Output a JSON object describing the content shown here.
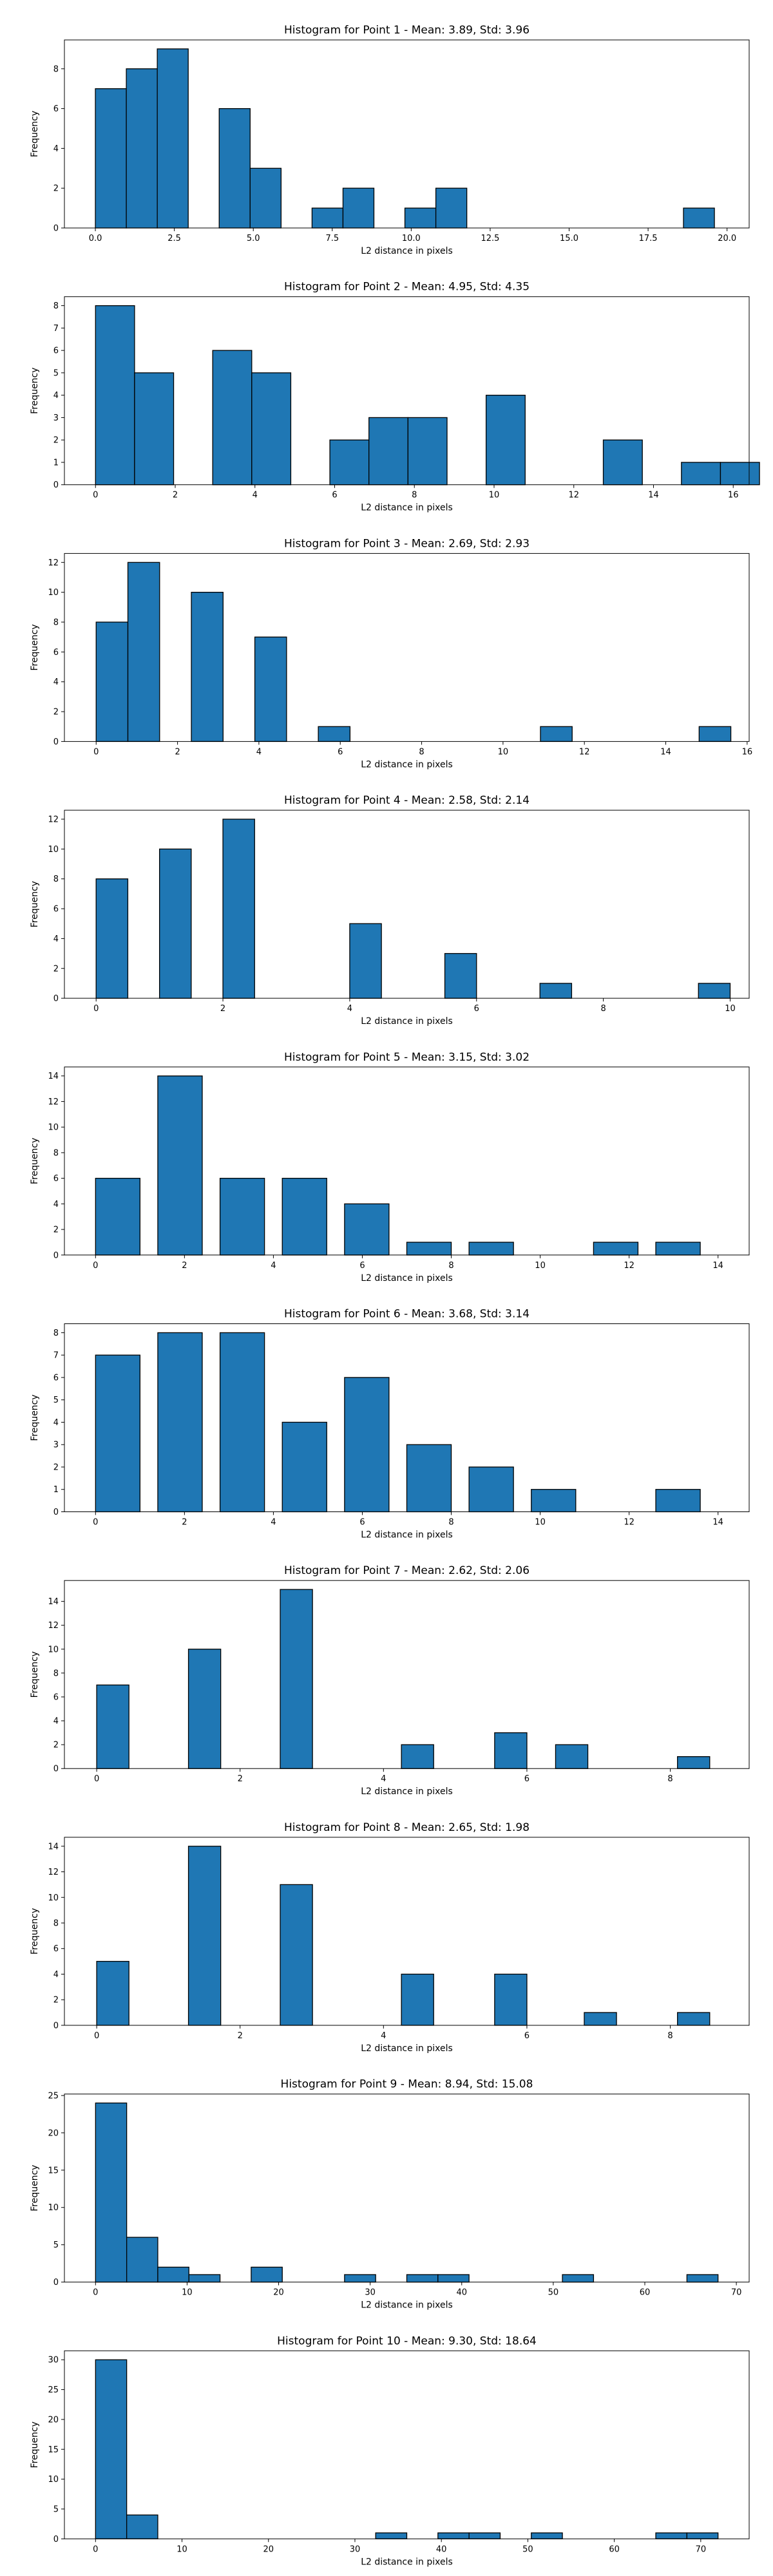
{
  "figure": {
    "bar_color": "#1f77b4",
    "edge_color": "#000000"
  },
  "chart_data": [
    {
      "type": "bar",
      "title": "Histogram for Point 1 - Mean: 3.89, Std: 3.96",
      "xlabel": "L2 distance in pixels",
      "ylabel": "Frequency",
      "xlim": [
        -0.98,
        20.7
      ],
      "ylim": [
        0,
        9.45
      ],
      "xticks": [
        0.0,
        2.5,
        5.0,
        7.5,
        10.0,
        12.5,
        15.0,
        17.5,
        20.0
      ],
      "xtick_labels": [
        "0.0",
        "2.5",
        "5.0",
        "7.5",
        "10.0",
        "12.5",
        "15.0",
        "17.5",
        "20.0"
      ],
      "yticks": [
        0,
        2,
        4,
        6,
        8
      ],
      "bins": [
        {
          "x0": 0.0,
          "x1": 0.98,
          "count": 7
        },
        {
          "x0": 0.98,
          "x1": 1.96,
          "count": 8
        },
        {
          "x0": 1.96,
          "x1": 2.94,
          "count": 9
        },
        {
          "x0": 3.92,
          "x1": 4.9,
          "count": 6
        },
        {
          "x0": 4.9,
          "x1": 5.88,
          "count": 3
        },
        {
          "x0": 6.86,
          "x1": 7.84,
          "count": 1
        },
        {
          "x0": 7.84,
          "x1": 8.82,
          "count": 2
        },
        {
          "x0": 9.8,
          "x1": 10.78,
          "count": 1
        },
        {
          "x0": 10.78,
          "x1": 11.76,
          "count": 2
        },
        {
          "x0": 18.62,
          "x1": 19.6,
          "count": 1
        }
      ]
    },
    {
      "type": "bar",
      "title": "Histogram for Point 2 - Mean: 4.95, Std: 4.35",
      "xlabel": "L2 distance in pixels",
      "ylabel": "Frequency",
      "xlim": [
        -0.78,
        16.4
      ],
      "ylim": [
        0,
        8.4
      ],
      "xticks": [
        0,
        2,
        4,
        6,
        8,
        10,
        12,
        14,
        16
      ],
      "xtick_labels": [
        "0",
        "2",
        "4",
        "6",
        "8",
        "10",
        "12",
        "14",
        "16"
      ],
      "yticks": [
        0,
        1,
        2,
        3,
        4,
        5,
        6,
        7,
        8
      ],
      "bins": [
        {
          "x0": 0.0,
          "x1": 0.98,
          "count": 8
        },
        {
          "x0": 0.98,
          "x1": 1.96,
          "count": 5
        },
        {
          "x0": 2.94,
          "x1": 3.92,
          "count": 6
        },
        {
          "x0": 3.92,
          "x1": 4.9,
          "count": 5
        },
        {
          "x0": 5.88,
          "x1": 6.86,
          "count": 2
        },
        {
          "x0": 6.86,
          "x1": 7.84,
          "count": 3
        },
        {
          "x0": 7.84,
          "x1": 8.82,
          "count": 3
        },
        {
          "x0": 9.8,
          "x1": 10.78,
          "count": 4
        },
        {
          "x0": 12.74,
          "x1": 13.72,
          "count": 2
        },
        {
          "x0": 14.7,
          "x1": 15.68,
          "count": 1
        },
        {
          "x0": 15.68,
          "x1": 16.66,
          "count": 1
        }
      ]
    },
    {
      "type": "bar",
      "title": "Histogram for Point 3 - Mean: 2.69, Std: 2.93",
      "xlabel": "L2 distance in pixels",
      "ylabel": "Frequency",
      "xlim": [
        -0.78,
        16.05
      ],
      "ylim": [
        0,
        12.6
      ],
      "xticks": [
        0,
        2,
        4,
        6,
        8,
        10,
        12,
        14,
        16
      ],
      "xtick_labels": [
        "0",
        "2",
        "4",
        "6",
        "8",
        "10",
        "12",
        "14",
        "16"
      ],
      "yticks": [
        0,
        2,
        4,
        6,
        8,
        10,
        12
      ],
      "bins": [
        {
          "x0": 0.0,
          "x1": 0.78,
          "count": 8
        },
        {
          "x0": 0.78,
          "x1": 1.56,
          "count": 12
        },
        {
          "x0": 2.34,
          "x1": 3.12,
          "count": 10
        },
        {
          "x0": 3.9,
          "x1": 4.68,
          "count": 7
        },
        {
          "x0": 5.46,
          "x1": 6.24,
          "count": 1
        },
        {
          "x0": 10.92,
          "x1": 11.7,
          "count": 1
        },
        {
          "x0": 14.82,
          "x1": 15.6,
          "count": 1
        }
      ]
    },
    {
      "type": "bar",
      "title": "Histogram for Point 4 - Mean: 2.58, Std: 2.14",
      "xlabel": "L2 distance in pixels",
      "ylabel": "Frequency",
      "xlim": [
        -0.5,
        10.3
      ],
      "ylim": [
        0,
        12.6
      ],
      "xticks": [
        0,
        2,
        4,
        6,
        8,
        10
      ],
      "xtick_labels": [
        "0",
        "2",
        "4",
        "6",
        "8",
        "10"
      ],
      "yticks": [
        0,
        2,
        4,
        6,
        8,
        10,
        12
      ],
      "bins": [
        {
          "x0": 0.0,
          "x1": 0.5,
          "count": 8
        },
        {
          "x0": 1.0,
          "x1": 1.5,
          "count": 10
        },
        {
          "x0": 2.0,
          "x1": 2.5,
          "count": 12
        },
        {
          "x0": 4.0,
          "x1": 4.5,
          "count": 5
        },
        {
          "x0": 5.5,
          "x1": 6.0,
          "count": 3
        },
        {
          "x0": 7.0,
          "x1": 7.5,
          "count": 1
        },
        {
          "x0": 9.5,
          "x1": 10.0,
          "count": 1
        }
      ]
    },
    {
      "type": "bar",
      "title": "Histogram for Point 5 - Mean: 3.15, Std: 3.02",
      "xlabel": "L2 distance in pixels",
      "ylabel": "Frequency",
      "xlim": [
        -0.7,
        14.7
      ],
      "ylim": [
        0,
        14.7
      ],
      "xticks": [
        0,
        2,
        4,
        6,
        8,
        10,
        12,
        14
      ],
      "xtick_labels": [
        "0",
        "2",
        "4",
        "6",
        "8",
        "10",
        "12",
        "14"
      ],
      "yticks": [
        0,
        2,
        4,
        6,
        8,
        10,
        12,
        14
      ],
      "bins": [
        {
          "x0": 0.0,
          "x1": 1.0,
          "count": 6
        },
        {
          "x0": 1.4,
          "x1": 2.4,
          "count": 14
        },
        {
          "x0": 2.8,
          "x1": 3.8,
          "count": 6
        },
        {
          "x0": 4.2,
          "x1": 5.2,
          "count": 6
        },
        {
          "x0": 5.6,
          "x1": 6.6,
          "count": 4
        },
        {
          "x0": 7.0,
          "x1": 8.0,
          "count": 1
        },
        {
          "x0": 8.4,
          "x1": 9.4,
          "count": 1
        },
        {
          "x0": 11.2,
          "x1": 12.2,
          "count": 1
        },
        {
          "x0": 12.6,
          "x1": 13.6,
          "count": 1
        }
      ]
    },
    {
      "type": "bar",
      "title": "Histogram for Point 6 - Mean: 3.68, Std: 3.14",
      "xlabel": "L2 distance in pixels",
      "ylabel": "Frequency",
      "xlim": [
        -0.7,
        14.7
      ],
      "ylim": [
        0,
        8.4
      ],
      "xticks": [
        0,
        2,
        4,
        6,
        8,
        10,
        12,
        14
      ],
      "xtick_labels": [
        "0",
        "2",
        "4",
        "6",
        "8",
        "10",
        "12",
        "14"
      ],
      "yticks": [
        0,
        1,
        2,
        3,
        4,
        5,
        6,
        7,
        8
      ],
      "bins": [
        {
          "x0": 0.0,
          "x1": 1.0,
          "count": 7
        },
        {
          "x0": 1.4,
          "x1": 2.4,
          "count": 8
        },
        {
          "x0": 2.8,
          "x1": 3.8,
          "count": 8
        },
        {
          "x0": 4.2,
          "x1": 5.2,
          "count": 4
        },
        {
          "x0": 5.6,
          "x1": 6.6,
          "count": 6
        },
        {
          "x0": 7.0,
          "x1": 8.0,
          "count": 3
        },
        {
          "x0": 8.4,
          "x1": 9.4,
          "count": 2
        },
        {
          "x0": 9.8,
          "x1": 10.8,
          "count": 1
        },
        {
          "x0": 12.6,
          "x1": 13.6,
          "count": 1
        }
      ]
    },
    {
      "type": "bar",
      "title": "Histogram for Point 7 - Mean: 2.62, Std: 2.06",
      "xlabel": "L2 distance in pixels",
      "ylabel": "Frequency",
      "xlim": [
        -0.45,
        9.1
      ],
      "ylim": [
        0,
        15.75
      ],
      "xticks": [
        0,
        2,
        4,
        6,
        8
      ],
      "xtick_labels": [
        "0",
        "2",
        "4",
        "6",
        "8"
      ],
      "yticks": [
        0,
        2,
        4,
        6,
        8,
        10,
        12,
        14
      ],
      "bins": [
        {
          "x0": 0.0,
          "x1": 0.45,
          "count": 7
        },
        {
          "x0": 1.28,
          "x1": 1.73,
          "count": 10
        },
        {
          "x0": 2.56,
          "x1": 3.01,
          "count": 15
        },
        {
          "x0": 4.25,
          "x1": 4.7,
          "count": 2
        },
        {
          "x0": 5.55,
          "x1": 6.0,
          "count": 3
        },
        {
          "x0": 6.4,
          "x1": 6.85,
          "count": 2
        },
        {
          "x0": 8.1,
          "x1": 8.55,
          "count": 1
        }
      ]
    },
    {
      "type": "bar",
      "title": "Histogram for Point 8 - Mean: 2.65, Std: 1.98",
      "xlabel": "L2 distance in pixels",
      "ylabel": "Frequency",
      "xlim": [
        -0.45,
        9.1
      ],
      "ylim": [
        0,
        14.7
      ],
      "xticks": [
        0,
        2,
        4,
        6,
        8
      ],
      "xtick_labels": [
        "0",
        "2",
        "4",
        "6",
        "8"
      ],
      "yticks": [
        0,
        2,
        4,
        6,
        8,
        10,
        12,
        14
      ],
      "bins": [
        {
          "x0": 0.0,
          "x1": 0.45,
          "count": 5
        },
        {
          "x0": 1.28,
          "x1": 1.73,
          "count": 14
        },
        {
          "x0": 2.56,
          "x1": 3.01,
          "count": 11
        },
        {
          "x0": 4.25,
          "x1": 4.7,
          "count": 4
        },
        {
          "x0": 5.55,
          "x1": 6.0,
          "count": 4
        },
        {
          "x0": 6.8,
          "x1": 7.25,
          "count": 1
        },
        {
          "x0": 8.1,
          "x1": 8.55,
          "count": 1
        }
      ]
    },
    {
      "type": "bar",
      "title": "Histogram for Point 9 - Mean: 8.94, Std: 15.08",
      "xlabel": "L2 distance in pixels",
      "ylabel": "Frequency",
      "xlim": [
        -3.4,
        71.4
      ],
      "ylim": [
        0,
        25.2
      ],
      "xticks": [
        0,
        10,
        20,
        30,
        40,
        50,
        60,
        70
      ],
      "xtick_labels": [
        "0",
        "10",
        "20",
        "30",
        "40",
        "50",
        "60",
        "70"
      ],
      "yticks": [
        0,
        5,
        10,
        15,
        20,
        25
      ],
      "bins": [
        {
          "x0": 0.0,
          "x1": 3.4,
          "count": 24
        },
        {
          "x0": 3.4,
          "x1": 6.8,
          "count": 6
        },
        {
          "x0": 6.8,
          "x1": 10.2,
          "count": 2
        },
        {
          "x0": 10.2,
          "x1": 13.6,
          "count": 1
        },
        {
          "x0": 17.0,
          "x1": 20.4,
          "count": 2
        },
        {
          "x0": 27.2,
          "x1": 30.6,
          "count": 1
        },
        {
          "x0": 34.0,
          "x1": 37.4,
          "count": 1
        },
        {
          "x0": 37.4,
          "x1": 40.8,
          "count": 1
        },
        {
          "x0": 51.0,
          "x1": 54.4,
          "count": 1
        },
        {
          "x0": 64.6,
          "x1": 68.0,
          "count": 1
        }
      ]
    },
    {
      "type": "bar",
      "title": "Histogram for Point 10 - Mean: 9.30, Std: 18.64",
      "xlabel": "L2 distance in pixels",
      "ylabel": "Frequency",
      "xlim": [
        -3.6,
        75.6
      ],
      "ylim": [
        0,
        31.5
      ],
      "xticks": [
        0,
        10,
        20,
        30,
        40,
        50,
        60,
        70
      ],
      "xtick_labels": [
        "0",
        "10",
        "20",
        "30",
        "40",
        "50",
        "60",
        "70"
      ],
      "yticks": [
        0,
        5,
        10,
        15,
        20,
        25,
        30
      ],
      "bins": [
        {
          "x0": 0.0,
          "x1": 3.6,
          "count": 30
        },
        {
          "x0": 3.6,
          "x1": 7.2,
          "count": 4
        },
        {
          "x0": 32.4,
          "x1": 36.0,
          "count": 1
        },
        {
          "x0": 39.6,
          "x1": 43.2,
          "count": 1
        },
        {
          "x0": 43.2,
          "x1": 46.8,
          "count": 1
        },
        {
          "x0": 50.4,
          "x1": 54.0,
          "count": 1
        },
        {
          "x0": 64.8,
          "x1": 68.4,
          "count": 1
        },
        {
          "x0": 68.4,
          "x1": 72.0,
          "count": 1
        }
      ]
    }
  ]
}
